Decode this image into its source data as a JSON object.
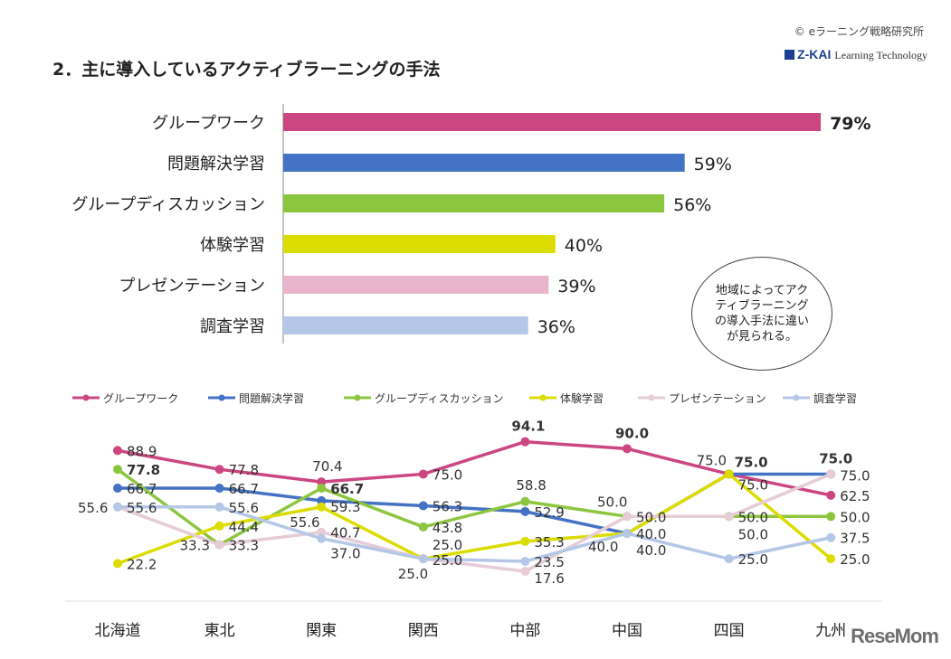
{
  "header": {
    "title": "2．主に導入しているアクティブラーニングの手法",
    "copyright": "© eラーニング戦略研究所",
    "logo": "Z-KAI",
    "logo_sub": "Learning Technology"
  },
  "callout": "地域によってアクティブラーニングの導入手法に違いが見られる。",
  "watermark": "ReseMom",
  "chart_data": [
    {
      "type": "bar",
      "orientation": "horizontal",
      "categories": [
        "グループワーク",
        "問題解決学習",
        "グループディスカッション",
        "体験学習",
        "プレゼンテーション",
        "調査学習"
      ],
      "values": [
        79,
        59,
        56,
        40,
        39,
        36
      ],
      "labels": [
        "79%",
        "59%",
        "56%",
        "40%",
        "39%",
        "36%"
      ],
      "colors": [
        "#cc4682",
        "#4472c4",
        "#8cc63f",
        "#dcdc00",
        "#ebb4cd",
        "#b4c7e7"
      ],
      "xlim": [
        0,
        100
      ]
    },
    {
      "type": "line",
      "categories": [
        "北海道",
        "東北",
        "関東",
        "関西",
        "中部",
        "中国",
        "四国",
        "九州"
      ],
      "ylim": [
        0,
        100
      ],
      "legend": "top",
      "grid": false,
      "series": [
        {
          "name": "グループワーク",
          "color": "#cc4682",
          "values": [
            88.9,
            77.8,
            70.4,
            75.0,
            94.1,
            90.0,
            75.0,
            62.5
          ],
          "bold": [
            false,
            false,
            false,
            false,
            true,
            true,
            false,
            false
          ]
        },
        {
          "name": "問題解決学習",
          "color": "#4472c4",
          "values": [
            66.7,
            66.7,
            59.3,
            56.3,
            52.9,
            40.0,
            75.0,
            75.0
          ],
          "bold": [
            false,
            false,
            false,
            false,
            false,
            false,
            true,
            true
          ]
        },
        {
          "name": "グループディスカッション",
          "color": "#8cc63f",
          "values": [
            77.8,
            33.3,
            66.7,
            43.8,
            58.8,
            50.0,
            50.0,
            50.0
          ],
          "bold": [
            true,
            false,
            true,
            false,
            false,
            false,
            false,
            false
          ]
        },
        {
          "name": "体験学習",
          "color": "#dcdc00",
          "values": [
            22.2,
            44.4,
            55.6,
            25.0,
            35.3,
            40.0,
            75.0,
            25.0
          ],
          "bold": [
            false,
            false,
            false,
            false,
            false,
            false,
            false,
            false
          ]
        },
        {
          "name": "プレゼンテーション",
          "color": "#e6ccd7",
          "values": [
            55.6,
            33.3,
            40.7,
            25.0,
            17.6,
            50.0,
            50.0,
            75.0
          ],
          "bold": [
            false,
            false,
            false,
            false,
            false,
            false,
            false,
            false
          ]
        },
        {
          "name": "調査学習",
          "color": "#b4c7e7",
          "values": [
            55.6,
            55.6,
            37.0,
            25.0,
            23.5,
            40.0,
            25.0,
            37.5
          ],
          "bold": [
            false,
            false,
            false,
            false,
            false,
            false,
            false,
            false
          ]
        }
      ]
    }
  ]
}
